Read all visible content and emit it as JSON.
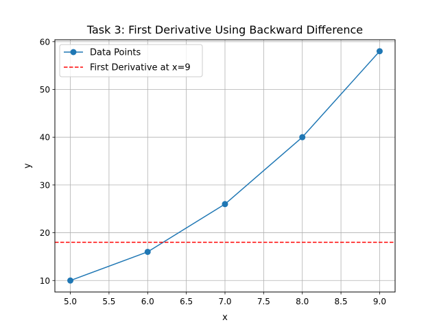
{
  "chart_data": {
    "type": "line",
    "title": "Task 3: First Derivative Using Backward Difference",
    "xlabel": "x",
    "ylabel": "y",
    "xlim": [
      4.8,
      9.2
    ],
    "ylim": [
      7.6,
      60.4
    ],
    "xticks": [
      5.0,
      5.5,
      6.0,
      6.5,
      7.0,
      7.5,
      8.0,
      8.5,
      9.0
    ],
    "xtick_labels": [
      "5.0",
      "5.5",
      "6.0",
      "6.5",
      "7.0",
      "7.5",
      "8.0",
      "8.5",
      "9.0"
    ],
    "yticks": [
      10,
      20,
      30,
      40,
      50,
      60
    ],
    "ytick_labels": [
      "10",
      "20",
      "30",
      "40",
      "50",
      "60"
    ],
    "grid": true,
    "legend_position": "top-left",
    "series": [
      {
        "name": "Data Points",
        "kind": "line-markers",
        "color": "#1f77b4",
        "x": [
          5,
          6,
          7,
          8,
          9
        ],
        "y": [
          10,
          16,
          26,
          40,
          58
        ]
      },
      {
        "name": "First Derivative at x=9",
        "kind": "horizontal-dashed-line",
        "color": "#ff0000",
        "y": 18
      }
    ]
  }
}
